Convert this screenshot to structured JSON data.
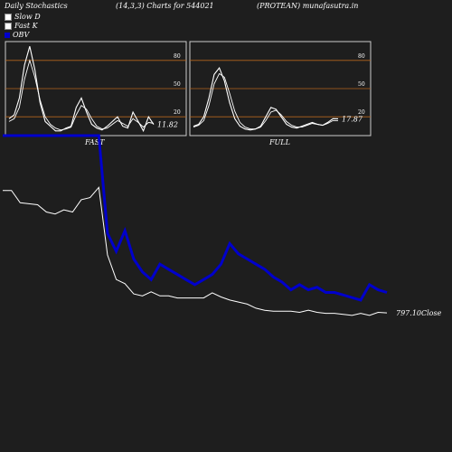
{
  "header": {
    "left": "Daily Stochastics",
    "mid": "(14,3,3) Charts for 544021",
    "right": "(PROTEAN) munafasutra.in"
  },
  "legend": {
    "slow_d": "Slow  D",
    "fast_k": "Fast K",
    "obv": "OBV"
  },
  "colors": {
    "background": "#1e1e1e",
    "panel_border": "#cccccc",
    "level_line": "#b5651d",
    "obv": "#0000cc",
    "stoch_line": "#ffffff",
    "price": "#ffffff"
  },
  "chart_data": [
    {
      "type": "line",
      "panel": "FAST",
      "label": "FAST",
      "yticks": [
        20,
        50,
        80
      ],
      "ylim": [
        0,
        100
      ],
      "last_value_label": "11.82",
      "series": [
        {
          "name": "Fast K",
          "values": [
            18,
            22,
            40,
            75,
            95,
            70,
            35,
            15,
            10,
            5,
            5,
            8,
            10,
            30,
            40,
            25,
            12,
            8,
            6,
            10,
            15,
            20,
            10,
            8,
            25,
            15,
            5,
            20,
            11.82
          ]
        },
        {
          "name": "Slow D",
          "values": [
            15,
            18,
            30,
            60,
            80,
            62,
            38,
            20,
            12,
            8,
            6,
            7,
            9,
            22,
            32,
            28,
            18,
            10,
            7,
            8,
            12,
            16,
            13,
            10,
            18,
            14,
            9,
            14,
            13
          ]
        }
      ]
    },
    {
      "type": "line",
      "panel": "FULL",
      "label": "FULL",
      "yticks": [
        20,
        50,
        80
      ],
      "ylim": [
        0,
        100
      ],
      "last_value_label": "17.87",
      "series": [
        {
          "name": "Full K",
          "values": [
            10,
            12,
            20,
            40,
            65,
            72,
            58,
            35,
            18,
            10,
            7,
            6,
            7,
            10,
            20,
            30,
            28,
            20,
            12,
            9,
            8,
            10,
            12,
            14,
            12,
            11,
            14,
            18,
            17.87
          ]
        },
        {
          "name": "Full D",
          "values": [
            9,
            11,
            16,
            32,
            55,
            66,
            62,
            45,
            26,
            14,
            9,
            7,
            7,
            9,
            16,
            25,
            27,
            22,
            15,
            11,
            9,
            9,
            11,
            13,
            12,
            11,
            13,
            16,
            16
          ]
        }
      ]
    },
    {
      "type": "line",
      "panel": "price",
      "last_value_label": "797.10",
      "last_value_suffix": "Close",
      "series": [
        {
          "name": "Close",
          "values": [
            1395,
            1395,
            1335,
            1330,
            1325,
            1290,
            1280,
            1300,
            1290,
            1350,
            1360,
            1410,
            1080,
            960,
            940,
            890,
            880,
            900,
            880,
            880,
            870,
            870,
            870,
            870,
            895,
            875,
            860,
            850,
            840,
            820,
            810,
            805,
            805,
            805,
            800,
            810,
            800,
            795,
            795,
            790,
            785,
            795,
            785,
            800,
            797.1
          ]
        },
        {
          "name": "OBV",
          "values": [
            1,
            1,
            1,
            1,
            1,
            1,
            1,
            1,
            1,
            1,
            1,
            1,
            -18,
            -21.5,
            -17.5,
            -23,
            -25.5,
            -27,
            -24,
            -25,
            -26,
            -27,
            -28,
            -27,
            -26,
            -24,
            -20,
            -22,
            -23,
            -24,
            -25,
            -26.5,
            -27.5,
            -29,
            -28,
            -29,
            -28.5,
            -29.5,
            -29.5,
            -30,
            -30.5,
            -31,
            -28,
            -29,
            -29.5
          ]
        }
      ]
    }
  ]
}
